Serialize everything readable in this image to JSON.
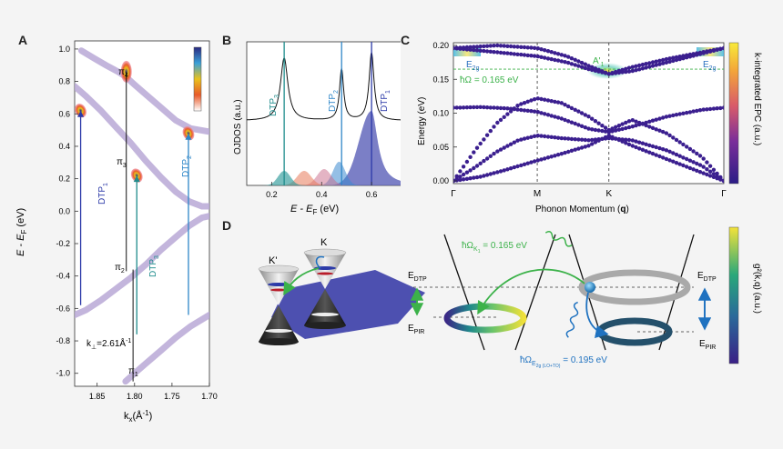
{
  "panels": {
    "A": {
      "label": "A",
      "ylabel_main": "E - E",
      "ylabel_sub": "F",
      "ylabel_unit": " (eV)",
      "xlabel_main": "k",
      "xlabel_sub": "x",
      "xlabel_unit": "(Å",
      "xlabel_sup": "-1",
      "xlabel_end": ")",
      "yticks": [
        "1.0",
        "0.8",
        "0.6",
        "0.4",
        "0.2",
        "0.0",
        "-0.2",
        "-0.4",
        "-0.6",
        "-0.8",
        "-1.0"
      ],
      "xticks": [
        "1.85",
        "1.80",
        "1.75",
        "1.70"
      ],
      "band_labels": [
        {
          "main": "π",
          "sub": "4"
        },
        {
          "main": "π",
          "sub": "3"
        },
        {
          "main": "π",
          "sub": "2"
        },
        {
          "main": "π",
          "sub": "1"
        }
      ],
      "dtp_labels": [
        {
          "main": "DTP",
          "sub": "1"
        },
        {
          "main": "DTP",
          "sub": "3"
        },
        {
          "main": "DTP",
          "sub": "2"
        }
      ],
      "kperp_label": "k",
      "kperp_sub": "⊥",
      "kperp_value": "=2.61Å",
      "kperp_sup": "-1"
    },
    "B": {
      "label": "B",
      "ylabel": "OJDOS (a.u.)",
      "xlabel_main": "E - E",
      "xlabel_sub": "F",
      "xlabel_unit": " (eV)",
      "xticks": [
        "0.2",
        "0.4",
        "0.6"
      ],
      "dtp_labels": [
        {
          "main": "DTP",
          "sub": "3"
        },
        {
          "main": "DTP",
          "sub": "2"
        },
        {
          "main": "DTP",
          "sub": "1"
        }
      ]
    },
    "C": {
      "label": "C",
      "ylabel": "Energy (eV)",
      "xlabel_main": "Phonon Momentum (",
      "xlabel_bold": "q",
      "xlabel_end": ")",
      "yticks": [
        "0.20",
        "0.15",
        "0.10",
        "0.05",
        "0.00"
      ],
      "xticks": [
        "Γ",
        "M",
        "K",
        "Γ"
      ],
      "annotation_A1": "A'",
      "annotation_A1_sub": "1",
      "annotation_E2g": "E",
      "annotation_E2g_sub": "2g",
      "omega_label": "ħΩ = 0.165 eV",
      "colorbar_label": "k-integrated EPC (a.u.)"
    },
    "D": {
      "label": "D",
      "valley_K": "K",
      "valley_Kprime": "K'",
      "e_dtp_left": "E",
      "e_dtp_left_sub": "DTP",
      "e_pir_left": "E",
      "e_pir_left_sub": "PIR",
      "e_dtp_right": "E",
      "e_dtp_right_sub": "DTP",
      "e_pir_right": "E",
      "e_pir_right_sub": "PIR",
      "phonon_A1_prefix": "ħΩ",
      "phonon_A1_sub": "K",
      "phonon_A1_subsub": "1",
      "phonon_A1_value": " = 0.165 eV",
      "phonon_E2g_prefix": "ħΩ",
      "phonon_E2g_sub": "E",
      "phonon_E2g_subsub": "2g (LO+TO)",
      "phonon_E2g_value": " = 0.195 eV",
      "colorbar_label": "g²(k,q)  (a.u.)"
    }
  },
  "colors": {
    "band": "#b9a8d6",
    "dtp1": "#2c3aa8",
    "dtp2": "#2e86c8",
    "dtp3": "#1f8c8c",
    "phonon_dots": "#3b1f8f",
    "green": "#3cb24a",
    "blue_arrow": "#1f72c0",
    "ring_grey": "#a9a9a9",
    "ring_dark": "#24506b"
  },
  "chart_data": [
    {
      "type": "line",
      "panel": "A",
      "xlabel": "kx(Å-1)",
      "ylabel": "E - EF (eV)",
      "xlim": [
        1.88,
        1.7
      ],
      "ylim": [
        -1.08,
        1.05
      ],
      "xticks": [
        1.85,
        1.8,
        1.75,
        1.7
      ],
      "yticks": [
        1.0,
        0.8,
        0.6,
        0.4,
        0.2,
        0.0,
        -0.2,
        -0.4,
        -0.6,
        -0.8,
        -1.0
      ],
      "series": [
        {
          "name": "π4",
          "x": [
            1.871,
            1.853,
            1.838,
            1.822,
            1.812,
            1.8,
            1.785,
            1.765,
            1.745,
            1.725,
            1.7
          ],
          "y": [
            0.99,
            0.94,
            0.9,
            0.86,
            0.83,
            0.78,
            0.72,
            0.64,
            0.56,
            0.51,
            0.49
          ]
        },
        {
          "name": "π3",
          "x": [
            1.88,
            1.865,
            1.845,
            1.825,
            1.805,
            1.785,
            1.765,
            1.745,
            1.727,
            1.71,
            1.7
          ],
          "y": [
            0.77,
            0.71,
            0.62,
            0.52,
            0.42,
            0.31,
            0.21,
            0.12,
            0.06,
            0.03,
            0.03
          ]
        },
        {
          "name": "π2",
          "x": [
            1.7,
            1.71,
            1.727,
            1.745,
            1.765,
            1.785,
            1.805,
            1.825,
            1.845,
            1.865,
            1.88
          ],
          "y": [
            -0.03,
            -0.04,
            -0.09,
            -0.16,
            -0.24,
            -0.33,
            -0.41,
            -0.48,
            -0.55,
            -0.61,
            -0.64
          ]
        },
        {
          "name": "π1",
          "x": [
            1.812,
            1.8,
            1.785,
            1.765,
            1.745,
            1.725,
            1.7
          ],
          "y": [
            -1.05,
            -1.0,
            -0.94,
            -0.86,
            -0.78,
            -0.71,
            -0.64
          ]
        }
      ],
      "transitions": [
        {
          "name": "DTP1",
          "kx": 1.872,
          "e_from": -0.58,
          "e_to": 0.62
        },
        {
          "name": "DTP3",
          "kx": 1.797,
          "e_from": -0.76,
          "e_to": 0.22
        },
        {
          "name": "DTP2",
          "kx": 1.728,
          "e_from": -0.64,
          "e_to": 0.48
        }
      ],
      "kperp": 2.61
    },
    {
      "type": "line",
      "panel": "B",
      "xlabel": "E - EF (eV)",
      "ylabel": "OJDOS (a.u.)",
      "xlim": [
        0.1,
        0.72
      ],
      "xticks": [
        0.2,
        0.4,
        0.6
      ],
      "peaks": [
        {
          "name": "DTP3",
          "energy": 0.25
        },
        {
          "name": "DTP2",
          "energy": 0.48
        },
        {
          "name": "DTP1",
          "energy": 0.6
        }
      ]
    },
    {
      "type": "scatter",
      "panel": "C",
      "xlabel": "Phonon Momentum (q)",
      "ylabel": "Energy (eV)",
      "ylim": [
        0.0,
        0.2
      ],
      "yticks": [
        0.0,
        0.05,
        0.1,
        0.15,
        0.2
      ],
      "xticks": [
        "Γ",
        "M",
        "K",
        "Γ"
      ],
      "branches": [
        {
          "name": "E2g upper",
          "x": [
            0,
            0.16,
            0.31,
            0.42,
            0.5,
            0.575,
            0.66,
            0.79,
            0.92,
            1
          ],
          "y": [
            0.196,
            0.2,
            0.196,
            0.184,
            0.17,
            0.158,
            0.168,
            0.18,
            0.19,
            0.196
          ]
        },
        {
          "name": "E2g lower",
          "x": [
            0,
            0.16,
            0.31,
            0.42,
            0.5,
            0.575,
            0.66,
            0.79,
            0.92,
            1
          ],
          "y": [
            0.196,
            0.19,
            0.184,
            0.175,
            0.165,
            0.158,
            0.162,
            0.175,
            0.188,
            0.196
          ]
        },
        {
          "name": "ZO",
          "x": [
            0,
            0.1,
            0.2,
            0.31,
            0.4,
            0.5,
            0.575,
            0.66,
            0.79,
            0.92,
            1
          ],
          "y": [
            0.108,
            0.109,
            0.107,
            0.102,
            0.092,
            0.077,
            0.072,
            0.08,
            0.095,
            0.105,
            0.108
          ]
        },
        {
          "name": "LA",
          "x": [
            0,
            0.08,
            0.16,
            0.24,
            0.31,
            0.4,
            0.5,
            0.575,
            0.66,
            0.79,
            0.92,
            1
          ],
          "y": [
            0.0,
            0.045,
            0.085,
            0.112,
            0.122,
            0.115,
            0.095,
            0.075,
            0.09,
            0.07,
            0.035,
            0.0
          ]
        },
        {
          "name": "TA",
          "x": [
            0,
            0.08,
            0.16,
            0.24,
            0.31,
            0.4,
            0.5,
            0.575,
            0.66,
            0.79,
            0.92,
            1
          ],
          "y": [
            0.0,
            0.02,
            0.043,
            0.06,
            0.067,
            0.063,
            0.06,
            0.063,
            0.06,
            0.045,
            0.022,
            0.0
          ]
        },
        {
          "name": "ZA",
          "x": [
            0,
            0.1,
            0.2,
            0.31,
            0.4,
            0.5,
            0.575,
            0.66,
            0.79,
            0.92,
            1
          ],
          "y": [
            0.0,
            0.006,
            0.017,
            0.03,
            0.04,
            0.052,
            0.067,
            0.052,
            0.032,
            0.012,
            0.0
          ]
        }
      ],
      "annotations": [
        {
          "label": "A'1",
          "q": "K",
          "energy": 0.165
        },
        {
          "label": "E2g",
          "q": "Γ",
          "energy": 0.195
        }
      ]
    }
  ]
}
